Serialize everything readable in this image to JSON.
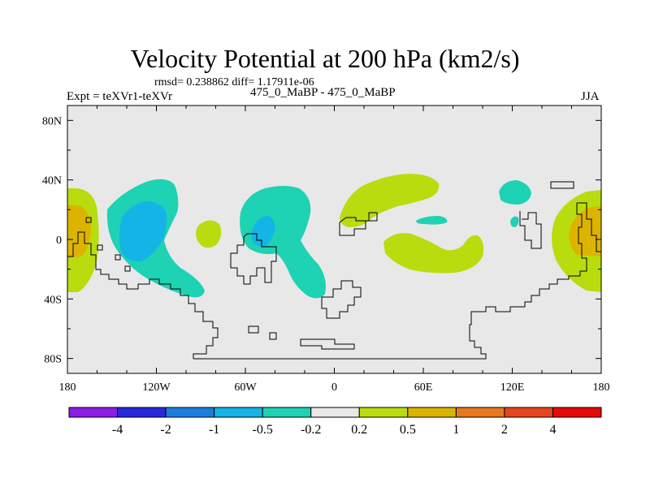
{
  "chart_data": {
    "type": "filled-contour-map",
    "title": "Velocity Potential at 200 hPa (km2/s)",
    "subtitle_stats": "rmsd= 0.238862 diff= 1.17911e-06",
    "left_label": "Expt = teXVr1-teXVr",
    "center_label": "475_0_MaBP - 475_0_MaBP",
    "right_label": "JJA",
    "x_ticks": [
      "180",
      "120W",
      "60W",
      "0",
      "60E",
      "120E",
      "180"
    ],
    "x_tick_values": [
      -180,
      -120,
      -60,
      0,
      60,
      120,
      180
    ],
    "y_ticks": [
      "80N",
      "40N",
      "0",
      "40S",
      "80S"
    ],
    "y_tick_values": [
      80,
      40,
      0,
      -40,
      -80
    ],
    "xlim": [
      -180,
      180
    ],
    "ylim": [
      -90,
      90
    ],
    "colorbar": {
      "labels": [
        "-4",
        "-2",
        "-1",
        "-0.5",
        "-0.2",
        "0.2",
        "0.5",
        "1",
        "2",
        "4"
      ],
      "colors": [
        "#8c1ee6",
        "#2828dc",
        "#1e7ddc",
        "#14b4e6",
        "#1ed2b4",
        "#e8e8e8",
        "#b9dc0f",
        "#dcb400",
        "#e6781e",
        "#e6461e",
        "#e60a0a"
      ]
    },
    "regions": [
      {
        "name": "central-pacific-positive",
        "level": "0.2 to 0.5",
        "lon_center": -172,
        "lat_center": -2
      },
      {
        "name": "central-pacific-core",
        "level": "0.5 to 1",
        "lon_center": -171,
        "lat_center": 0
      },
      {
        "name": "east-pacific-negative",
        "level": "-0.5 to -0.2",
        "lon_center": -110,
        "lat_center": 5
      },
      {
        "name": "east-pacific-core",
        "level": "-1 to -0.5",
        "lon_center": -112,
        "lat_center": 3
      },
      {
        "name": "south-america-negative",
        "level": "-0.5 to -0.2",
        "lon_center": -45,
        "lat_center": 0
      },
      {
        "name": "south-america-core",
        "level": "-1 to -0.5",
        "lon_center": -47,
        "lat_center": 5
      },
      {
        "name": "north-atlantic-positive",
        "level": "0.2 to 0.5",
        "lon_center": 40,
        "lat_center": 25
      },
      {
        "name": "indian-ocean-positive",
        "level": "0.2 to 0.5",
        "lon_center": 65,
        "lat_center": -5
      },
      {
        "name": "west-pacific-positive",
        "level": "0.2 to 0.5",
        "lon_center": 168,
        "lat_center": 0
      },
      {
        "name": "west-pacific-core",
        "level": "0.5 to 1",
        "lon_center": 170,
        "lat_center": 0
      },
      {
        "name": "east-asia-negative",
        "level": "-0.5 to -0.2",
        "lon_center": 112,
        "lat_center": 33
      }
    ]
  },
  "colors": {
    "background_panel": "#e8e8e8",
    "coastline": "#000000"
  }
}
